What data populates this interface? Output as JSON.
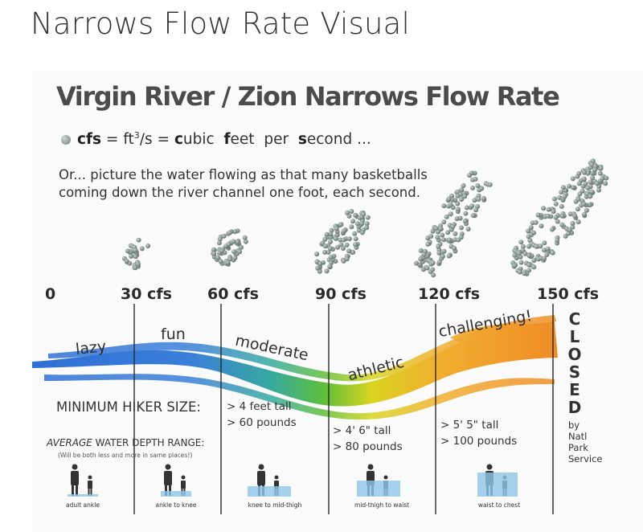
{
  "page_title": "Narrows Flow Rate Visual",
  "poster": {
    "heading": "Virgin River / Zion Narrows Flow Rate",
    "cfs_definition": {
      "term": "cfs",
      "equals_1": "=",
      "unit_base": "ft",
      "unit_exp": "3",
      "unit_tail": "/s",
      "equals_2": "=",
      "expansion_parts": [
        {
          "bold": "c",
          "rest": "ubic"
        },
        {
          "bold": "f",
          "rest": "eet"
        },
        {
          "bold": "",
          "rest": "per"
        },
        {
          "bold": "s",
          "rest": "econd ..."
        }
      ]
    },
    "picture_text_line1": "Or... picture the water flowing as that many basketballs",
    "picture_text_line2": "coming down the river channel one foot, each second.",
    "scale_labels": [
      "0",
      "30 cfs",
      "60 cfs",
      "90 cfs",
      "120 cfs",
      "150 cfs"
    ],
    "flow_words": [
      "lazy",
      "fun",
      "moderate",
      "athletic",
      "challenging!"
    ],
    "closed_letters": [
      "C",
      "L",
      "O",
      "S",
      "E",
      "D"
    ],
    "closed_by": [
      "by",
      "Natl",
      "Park",
      "Service"
    ],
    "min_hiker_label": "MINIMUM HIKER SIZE:",
    "requirements": [
      {
        "height": "> 4 feet tall",
        "weight": "> 60 pounds"
      },
      {
        "height": "> 4' 6\" tall",
        "weight": "> 80 pounds"
      },
      {
        "height": "> 5' 5\" tall",
        "weight": "> 100 pounds"
      }
    ],
    "avg_depth_label_italic": "AVERAGE",
    "avg_depth_label_rest": " WATER DEPTH RANGE:",
    "avg_depth_note": "(Will be both less and more in same places!)",
    "depth_captions": [
      "adult ankle",
      "ankle to knee",
      "knee to mid-thigh",
      "mid-thigh to waist",
      "waist to chest"
    ],
    "colors": {
      "blue": "#2f6fd6",
      "green": "#5fbf3a",
      "yellow": "#d9d41e",
      "orange": "#f0a028",
      "basketball": "#7d9187"
    }
  }
}
